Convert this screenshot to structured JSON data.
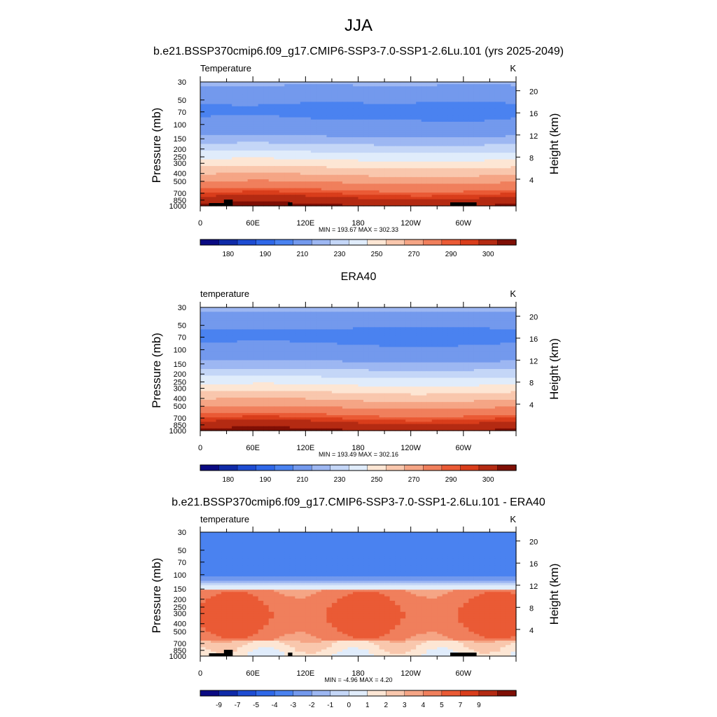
{
  "main_title": "JJA",
  "chart_data": [
    {
      "type": "heatmap",
      "panel_title": "b.e21.BSSP370cmip6.f09_g17.CMIP6-SSP3-7.0-SSP1-2.6Lu.101 (yrs 2025-2049)",
      "field_label": "Temperature",
      "units": "K",
      "ylabel": "Pressure (mb)",
      "ylabel_right": "Height (km)",
      "pressure_ticks": [
        "30",
        "50",
        "70",
        "100",
        "150",
        "200",
        "250",
        "300",
        "400",
        "500",
        "700",
        "850",
        "1000"
      ],
      "height_ticks": [
        "20",
        "16",
        "12",
        "8",
        "4"
      ],
      "xticks": [
        "0",
        "60E",
        "120E",
        "180",
        "120W",
        "60W"
      ],
      "x_domain": [
        0,
        360
      ],
      "stats": "MIN = 193.67  MAX = 302.33",
      "colorbar_labels": [
        "180",
        "190",
        "210",
        "230",
        "250",
        "270",
        "290",
        "300"
      ],
      "terrain": true,
      "field": "abs_model"
    },
    {
      "type": "heatmap",
      "panel_title": "ERA40",
      "field_label": "temperature",
      "units": "K",
      "ylabel": "Pressure (mb)",
      "ylabel_right": "Height (km)",
      "pressure_ticks": [
        "30",
        "50",
        "70",
        "100",
        "150",
        "200",
        "250",
        "300",
        "400",
        "500",
        "700",
        "850",
        "1000"
      ],
      "height_ticks": [
        "20",
        "16",
        "12",
        "8",
        "4"
      ],
      "xticks": [
        "0",
        "60E",
        "120E",
        "180",
        "120W",
        "60W"
      ],
      "x_domain": [
        0,
        360
      ],
      "stats": "MIN = 193.49  MAX = 302.16",
      "colorbar_labels": [
        "180",
        "190",
        "210",
        "230",
        "250",
        "270",
        "290",
        "300"
      ],
      "terrain": false,
      "field": "abs_obs"
    },
    {
      "type": "heatmap",
      "panel_title": "b.e21.BSSP370cmip6.f09_g17.CMIP6-SSP3-7.0-SSP1-2.6Lu.101 - ERA40",
      "field_label": "temperature",
      "units": "K",
      "ylabel": "Pressure (mb)",
      "ylabel_right": "Height (km)",
      "pressure_ticks": [
        "30",
        "50",
        "70",
        "100",
        "150",
        "200",
        "250",
        "300",
        "400",
        "500",
        "700",
        "850",
        "1000"
      ],
      "height_ticks": [
        "20",
        "16",
        "12",
        "8",
        "4"
      ],
      "xticks": [
        "0",
        "60E",
        "120E",
        "180",
        "120W",
        "60W"
      ],
      "x_domain": [
        0,
        360
      ],
      "stats": "MIN =  -4.96  MAX =   4.20",
      "colorbar_labels": [
        "-9",
        "-7",
        "-5",
        "-4",
        "-3",
        "-2",
        "-1",
        "0",
        "1",
        "2",
        "3",
        "4",
        "5",
        "7",
        "9"
      ],
      "terrain": true,
      "field": "diff"
    }
  ],
  "colors": {
    "colormap": [
      "#0a0a82",
      "#0f2aa8",
      "#1e4cd2",
      "#2f68e8",
      "#4a82f0",
      "#7399ed",
      "#9db7f2",
      "#c4d6f7",
      "#e0ecfb",
      "#fde6d4",
      "#f9c7ad",
      "#f5a585",
      "#f07f5c",
      "#ea5a35",
      "#d93d1b",
      "#b42a12",
      "#7f0f05"
    ],
    "terrain": "#000000"
  }
}
